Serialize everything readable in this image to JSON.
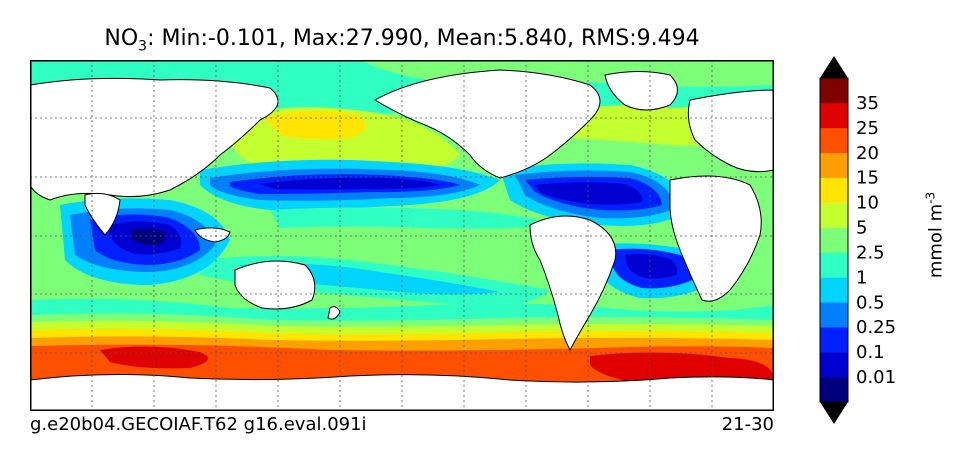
{
  "title": {
    "variable": "NO",
    "subscript": "3",
    "stats": ": Min:-0.101, Max:27.990, Mean:5.840, RMS:9.494"
  },
  "footer": {
    "left": "g.e20b04.GECOIAF.T62 g16.eval.091i",
    "right": "21-30"
  },
  "colorbar": {
    "unit_prefix": "mmol m",
    "unit_exponent": "-3",
    "levels": [
      "0.01",
      "0.1",
      "0.25",
      "0.5",
      "1",
      "2.5",
      "5",
      "10",
      "15",
      "20",
      "25",
      "35"
    ],
    "colors": [
      "#00007f",
      "#0000d0",
      "#0020ff",
      "#0080ff",
      "#00d4ff",
      "#30ffc4",
      "#7dff7a",
      "#c4ff30",
      "#ffe500",
      "#ff9f00",
      "#ff5000",
      "#e00000",
      "#800000"
    ]
  },
  "map": {
    "projection": "global latitude-longitude",
    "grid": "dotted",
    "land_color": "#ffffff",
    "coast_color": "#000000"
  }
}
